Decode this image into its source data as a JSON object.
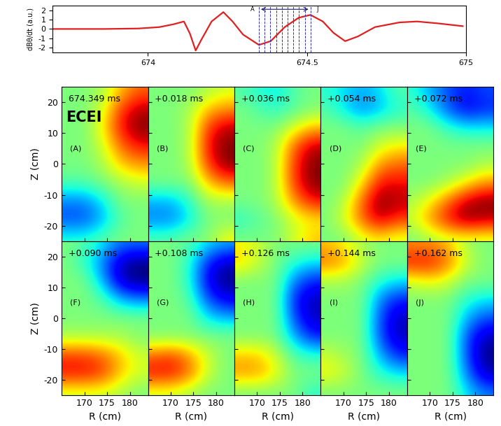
{
  "chart_data": [
    {
      "type": "line",
      "ylabel": "dBθ/dt (a.u.)",
      "color": "#e02020",
      "x": [
        673.7,
        673.861,
        673.97,
        674.036,
        674.08,
        674.113,
        674.132,
        674.15,
        674.167,
        674.2,
        674.237,
        674.266,
        674.299,
        674.349,
        674.386,
        674.43,
        674.474,
        674.511,
        674.55,
        674.583,
        674.62,
        674.66,
        674.714,
        674.791,
        674.846,
        674.911,
        674.99
      ],
      "values": [
        0.0,
        0.0,
        0.05,
        0.2,
        0.5,
        0.8,
        -0.5,
        -2.3,
        -1.2,
        0.8,
        1.8,
        0.8,
        -0.6,
        -1.7,
        -1.3,
        0.2,
        1.2,
        1.5,
        0.8,
        -0.4,
        -1.3,
        -0.8,
        0.2,
        0.7,
        0.8,
        0.6,
        0.3
      ],
      "vlines": [
        674.349,
        674.367,
        674.385,
        674.403,
        674.421,
        674.439,
        674.457,
        674.475,
        674.493,
        674.511
      ],
      "span_labels": [
        "A",
        "J"
      ],
      "span_y": 2.1,
      "xlim": [
        673.7,
        675.0
      ],
      "ylim": [
        -2.5,
        2.5
      ],
      "xticks": [
        674,
        674.5,
        675
      ],
      "yticks": [
        -2,
        -1,
        0,
        1,
        2
      ]
    },
    {
      "type": "heatmap",
      "title": "674.349 ms",
      "panel": "(A)",
      "annotation": "ECEI",
      "ylabel": "Z (cm)",
      "tick_labels": "y",
      "x": [
        166,
        170,
        174,
        178,
        182
      ],
      "y": [
        24,
        18,
        12,
        6,
        0,
        -6,
        -12,
        -18,
        -24
      ],
      "zlim": [
        -1,
        1
      ],
      "xlim": [
        165,
        184
      ],
      "ylim": [
        -25,
        25
      ],
      "xticks": [
        170,
        175,
        180
      ],
      "yticks": [
        -20,
        -10,
        0,
        10,
        20
      ],
      "cells": [
        [
          0,
          0,
          0.1,
          0.4,
          0.6
        ],
        [
          0,
          0,
          0.2,
          0.7,
          0.9
        ],
        [
          0,
          0,
          0.3,
          0.8,
          1.0
        ],
        [
          0,
          0,
          0.2,
          0.6,
          0.8
        ],
        [
          0,
          0,
          0.1,
          0.4,
          0.5
        ],
        [
          -0.1,
          -0.1,
          0,
          0.1,
          0.2
        ],
        [
          -0.5,
          -0.5,
          -0.3,
          0,
          0
        ],
        [
          -0.6,
          -0.6,
          -0.4,
          -0.1,
          0
        ],
        [
          -0.2,
          -0.2,
          -0.1,
          0,
          0
        ]
      ]
    },
    {
      "type": "heatmap",
      "title": "+0.018 ms",
      "panel": "(B)",
      "tick_labels": false,
      "x": [
        166,
        170,
        174,
        178,
        182
      ],
      "y": [
        24,
        18,
        12,
        6,
        0,
        -6,
        -12,
        -18,
        -24
      ],
      "zlim": [
        -1,
        1
      ],
      "xlim": [
        165,
        184
      ],
      "ylim": [
        -25,
        25
      ],
      "xticks": [
        170,
        175,
        180
      ],
      "yticks": [
        -20,
        -10,
        0,
        10,
        20
      ],
      "cells": [
        [
          0,
          0,
          0,
          0.1,
          0.2
        ],
        [
          0,
          0,
          0.1,
          0.4,
          0.5
        ],
        [
          0,
          0,
          0.1,
          0.7,
          0.9
        ],
        [
          0,
          0,
          0.1,
          0.8,
          1.0
        ],
        [
          0,
          0,
          0.1,
          0.7,
          1.0
        ],
        [
          0,
          0,
          0,
          0.4,
          0.6
        ],
        [
          -0.4,
          -0.4,
          -0.2,
          0.1,
          0.1
        ],
        [
          -0.5,
          -0.5,
          -0.3,
          0,
          0
        ],
        [
          -0.1,
          -0.1,
          0,
          0,
          0.3
        ]
      ]
    },
    {
      "type": "heatmap",
      "title": "+0.036 ms",
      "panel": "(C)",
      "tick_labels": false,
      "x": [
        166,
        170,
        174,
        178,
        182
      ],
      "y": [
        24,
        18,
        12,
        6,
        0,
        -6,
        -12,
        -18,
        -24
      ],
      "zlim": [
        -1,
        1
      ],
      "xlim": [
        165,
        184
      ],
      "ylim": [
        -25,
        25
      ],
      "xticks": [
        170,
        175,
        180
      ],
      "yticks": [
        -20,
        -10,
        0,
        10,
        20
      ],
      "cells": [
        [
          -0.1,
          -0.2,
          -0.3,
          -0.1,
          0
        ],
        [
          0,
          -0.1,
          -0.2,
          -0.1,
          0
        ],
        [
          0,
          0,
          0,
          0.2,
          0.4
        ],
        [
          0,
          0,
          0.1,
          0.6,
          0.9
        ],
        [
          0,
          0,
          0.1,
          0.7,
          1.0
        ],
        [
          0,
          0,
          0.1,
          0.7,
          1.0
        ],
        [
          0,
          0,
          0.1,
          0.5,
          0.8
        ],
        [
          -0.2,
          -0.1,
          0,
          0.2,
          0.3
        ],
        [
          0,
          0,
          0,
          0.2,
          0.4
        ]
      ]
    },
    {
      "type": "heatmap",
      "title": "+0.054 ms",
      "panel": "(D)",
      "tick_labels": false,
      "x": [
        166,
        170,
        174,
        178,
        182
      ],
      "y": [
        24,
        18,
        12,
        6,
        0,
        -6,
        -12,
        -18,
        -24
      ],
      "zlim": [
        -1,
        1
      ],
      "xlim": [
        165,
        184
      ],
      "ylim": [
        -25,
        25
      ],
      "xticks": [
        170,
        175,
        180
      ],
      "yticks": [
        -20,
        -10,
        0,
        10,
        20
      ],
      "cells": [
        [
          -0.2,
          -0.3,
          -0.4,
          -0.3,
          -0.1
        ],
        [
          -0.1,
          -0.3,
          -0.5,
          -0.4,
          -0.2
        ],
        [
          0,
          0,
          -0.1,
          0,
          0
        ],
        [
          0,
          0,
          0,
          0.2,
          0.3
        ],
        [
          0,
          0,
          0.1,
          0.5,
          0.6
        ],
        [
          0,
          0,
          0.3,
          0.8,
          0.8
        ],
        [
          0,
          0.1,
          0.6,
          1.0,
          0.9
        ],
        [
          0,
          0.2,
          0.6,
          0.9,
          0.7
        ],
        [
          0,
          0,
          0.2,
          0.3,
          0.2
        ]
      ]
    },
    {
      "type": "heatmap",
      "title": "+0.072 ms",
      "panel": "(E)",
      "tick_labels": false,
      "x": [
        166,
        170,
        174,
        178,
        182
      ],
      "y": [
        24,
        18,
        12,
        6,
        0,
        -6,
        -12,
        -18,
        -24
      ],
      "zlim": [
        -1,
        1
      ],
      "xlim": [
        165,
        184
      ],
      "ylim": [
        -25,
        25
      ],
      "xticks": [
        170,
        175,
        180
      ],
      "yticks": [
        -20,
        -10,
        0,
        10,
        20
      ],
      "cells": [
        [
          -0.2,
          -0.4,
          -0.6,
          -0.7,
          -0.6
        ],
        [
          -0.1,
          -0.3,
          -0.6,
          -0.8,
          -0.7
        ],
        [
          0,
          0,
          -0.2,
          -0.3,
          -0.3
        ],
        [
          0,
          0,
          0,
          0,
          0
        ],
        [
          0,
          0,
          0,
          0,
          0.1
        ],
        [
          0,
          0,
          0.1,
          0.3,
          0.5
        ],
        [
          0.1,
          0.3,
          0.6,
          0.9,
          1.0
        ],
        [
          0.2,
          0.5,
          0.8,
          1.0,
          0.9
        ],
        [
          0,
          0.1,
          0.2,
          0.2,
          0.2
        ]
      ]
    },
    {
      "type": "heatmap",
      "title": "+0.090 ms",
      "panel": "(F)",
      "xlabel": "R (cm)",
      "ylabel": "Z (cm)",
      "tick_labels": true,
      "x": [
        166,
        170,
        174,
        178,
        182
      ],
      "y": [
        24,
        18,
        12,
        6,
        0,
        -6,
        -12,
        -18,
        -24
      ],
      "zlim": [
        -1,
        1
      ],
      "xlim": [
        165,
        184
      ],
      "ylim": [
        -25,
        25
      ],
      "xticks": [
        170,
        175,
        180
      ],
      "yticks": [
        -20,
        -10,
        0,
        10,
        20
      ],
      "cells": [
        [
          0,
          -0.1,
          -0.3,
          -0.5,
          -0.5
        ],
        [
          0,
          -0.2,
          -0.5,
          -0.9,
          -1.0
        ],
        [
          0,
          0,
          -0.4,
          -0.9,
          -1.0
        ],
        [
          0,
          0,
          -0.1,
          -0.4,
          -0.5
        ],
        [
          0,
          0,
          0,
          0,
          0
        ],
        [
          0.1,
          0.1,
          0.1,
          0.1,
          0
        ],
        [
          0.7,
          0.7,
          0.6,
          0.4,
          0.2
        ],
        [
          0.8,
          0.8,
          0.7,
          0.4,
          0.2
        ],
        [
          0.2,
          0.2,
          0.2,
          0.1,
          0
        ]
      ]
    },
    {
      "type": "heatmap",
      "title": "+0.108 ms",
      "panel": "(G)",
      "xlabel": "R (cm)",
      "tick_labels": "x",
      "x": [
        166,
        170,
        174,
        178,
        182
      ],
      "y": [
        24,
        18,
        12,
        6,
        0,
        -6,
        -12,
        -18,
        -24
      ],
      "zlim": [
        -1,
        1
      ],
      "xlim": [
        165,
        184
      ],
      "ylim": [
        -25,
        25
      ],
      "xticks": [
        170,
        175,
        180
      ],
      "yticks": [
        -20,
        -10,
        0,
        10,
        20
      ],
      "cells": [
        [
          0,
          0,
          -0.1,
          -0.3,
          -0.4
        ],
        [
          0,
          0,
          -0.2,
          -0.7,
          -0.9
        ],
        [
          0,
          0,
          -0.2,
          -0.8,
          -1.0
        ],
        [
          0,
          0,
          -0.1,
          -0.6,
          -0.8
        ],
        [
          0,
          0,
          0,
          -0.3,
          -0.4
        ],
        [
          0,
          0,
          0,
          0,
          0
        ],
        [
          0.6,
          0.7,
          0.5,
          0.2,
          0
        ],
        [
          0.8,
          0.8,
          0.6,
          0.2,
          0
        ],
        [
          0.2,
          0.2,
          0.1,
          0,
          0
        ]
      ]
    },
    {
      "type": "heatmap",
      "title": "+0.126 ms",
      "panel": "(H)",
      "xlabel": "R (cm)",
      "tick_labels": "x",
      "x": [
        166,
        170,
        174,
        178,
        182
      ],
      "y": [
        24,
        18,
        12,
        6,
        0,
        -6,
        -12,
        -18,
        -24
      ],
      "zlim": [
        -1,
        1
      ],
      "xlim": [
        165,
        184
      ],
      "ylim": [
        -25,
        25
      ],
      "xticks": [
        170,
        175,
        180
      ],
      "yticks": [
        -20,
        -10,
        0,
        10,
        20
      ],
      "cells": [
        [
          0.3,
          0.2,
          0,
          0,
          0
        ],
        [
          0.4,
          0.2,
          0,
          -0.2,
          -0.3
        ],
        [
          0,
          0,
          0,
          -0.5,
          -0.7
        ],
        [
          0,
          0,
          0,
          -0.7,
          -0.9
        ],
        [
          0,
          0,
          0,
          -0.6,
          -0.9
        ],
        [
          0,
          0,
          0,
          -0.4,
          -0.7
        ],
        [
          0.4,
          0.4,
          0.2,
          -0.1,
          -0.2
        ],
        [
          0.5,
          0.5,
          0.3,
          0,
          0
        ],
        [
          0,
          0,
          0,
          0,
          -0.2
        ]
      ]
    },
    {
      "type": "heatmap",
      "title": "+0.144 ms",
      "panel": "(I)",
      "xlabel": "R (cm)",
      "tick_labels": "x",
      "x": [
        166,
        170,
        174,
        178,
        182
      ],
      "y": [
        24,
        18,
        12,
        6,
        0,
        -6,
        -12,
        -18,
        -24
      ],
      "zlim": [
        -1,
        1
      ],
      "xlim": [
        165,
        184
      ],
      "ylim": [
        -25,
        25
      ],
      "xticks": [
        170,
        175,
        180
      ],
      "yticks": [
        -20,
        -10,
        0,
        10,
        20
      ],
      "cells": [
        [
          0.4,
          0.3,
          0.1,
          0,
          0
        ],
        [
          0.6,
          0.5,
          0.2,
          0,
          0
        ],
        [
          0.1,
          0.1,
          0,
          -0.2,
          -0.3
        ],
        [
          0,
          0,
          0,
          -0.5,
          -0.7
        ],
        [
          0,
          0,
          0,
          -0.6,
          -0.9
        ],
        [
          0,
          0,
          0,
          -0.6,
          -0.9
        ],
        [
          0.2,
          0.1,
          0,
          -0.4,
          -0.7
        ],
        [
          0.3,
          0.2,
          0,
          -0.2,
          -0.3
        ],
        [
          0,
          0,
          0,
          0,
          0
        ]
      ]
    },
    {
      "type": "heatmap",
      "title": "+0.162 ms",
      "panel": "(J)",
      "xlabel": "R (cm)",
      "tick_labels": "x",
      "x": [
        166,
        170,
        174,
        178,
        182
      ],
      "y": [
        24,
        18,
        12,
        6,
        0,
        -6,
        -12,
        -18,
        -24
      ],
      "zlim": [
        -1,
        1
      ],
      "xlim": [
        165,
        184
      ],
      "ylim": [
        -25,
        25
      ],
      "xticks": [
        170,
        175,
        180
      ],
      "yticks": [
        -20,
        -10,
        0,
        10,
        20
      ],
      "cells": [
        [
          0.5,
          0.5,
          0.4,
          0.1,
          0
        ],
        [
          0.8,
          0.8,
          0.6,
          0.2,
          0
        ],
        [
          0.2,
          0.3,
          0.2,
          0,
          0
        ],
        [
          0,
          0,
          0,
          -0.2,
          -0.3
        ],
        [
          0,
          0,
          0,
          -0.4,
          -0.6
        ],
        [
          0,
          0,
          0,
          -0.6,
          -0.9
        ],
        [
          0,
          0,
          0,
          -0.6,
          -1.0
        ],
        [
          0,
          0,
          0,
          -0.5,
          -0.9
        ],
        [
          0,
          0,
          0,
          -0.3,
          -0.5
        ]
      ]
    }
  ]
}
